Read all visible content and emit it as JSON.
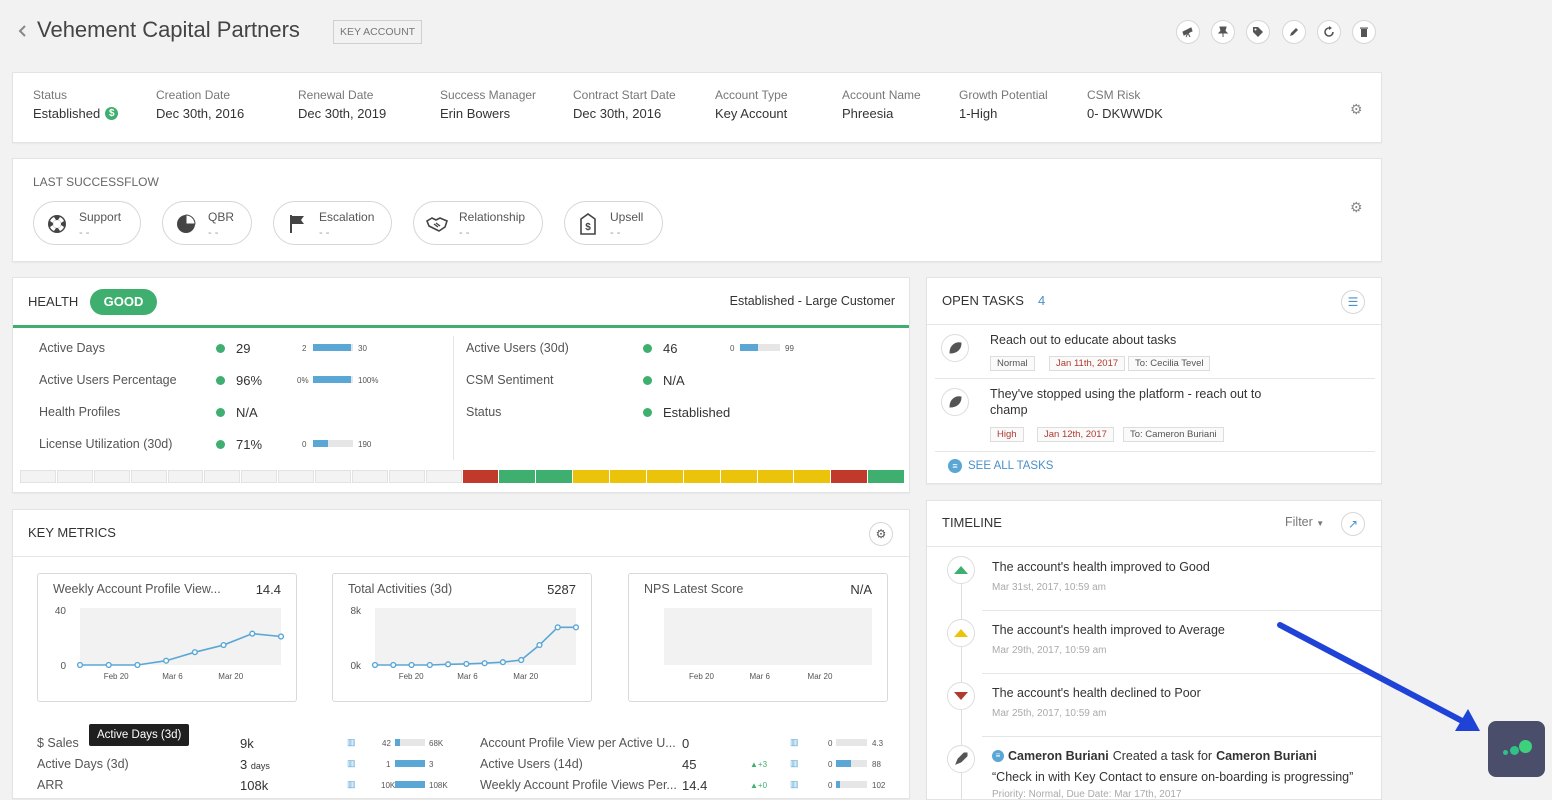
{
  "header": {
    "title": "Vehement Capital Partners",
    "badge": "KEY ACCOUNT",
    "actions": [
      "telescope-icon",
      "pin-icon",
      "tags-icon",
      "pencil-icon",
      "refresh-icon",
      "trash-icon"
    ]
  },
  "details": [
    {
      "label": "Status",
      "value": "Established"
    },
    {
      "label": "Creation Date",
      "value": "Dec 30th, 2016"
    },
    {
      "label": "Renewal Date",
      "value": "Dec 30th, 2019"
    },
    {
      "label": "Success Manager",
      "value": "Erin Bowers"
    },
    {
      "label": "Contract Start Date",
      "value": "Dec 30th, 2016"
    },
    {
      "label": "Account Type",
      "value": "Key Account"
    },
    {
      "label": "Account Name",
      "value": "Phreesia"
    },
    {
      "label": "Growth Potential",
      "value": "1-High"
    },
    {
      "label": "CSM Risk",
      "value": "0- DKWWDK"
    }
  ],
  "successflow": {
    "title": "LAST SUCCESSFLOW",
    "items": [
      {
        "label": "Support",
        "sub": "- -",
        "icon": "lifebuoy-icon"
      },
      {
        "label": "QBR",
        "sub": "- -",
        "icon": "pie-chart-icon"
      },
      {
        "label": "Escalation",
        "sub": "- -",
        "icon": "flag-icon"
      },
      {
        "label": "Relationship",
        "sub": "- -",
        "icon": "handshake-icon"
      },
      {
        "label": "Upsell",
        "sub": "- -",
        "icon": "dollar-tag-icon"
      }
    ]
  },
  "health": {
    "title": "HEALTH",
    "status": "GOOD",
    "segment": "Established - Large Customer",
    "left_rows": [
      {
        "label": "Active Days",
        "value": "29",
        "min": "2",
        "max": "30",
        "fill": 0.96
      },
      {
        "label": "Active Users Percentage",
        "value": "96%",
        "min": "0%",
        "max": "100%",
        "fill": 0.96
      },
      {
        "label": "Health Profiles",
        "value": "N/A"
      },
      {
        "label": "License Utilization (30d)",
        "value": "71%",
        "min": "0",
        "max": "190",
        "fill": 0.37
      }
    ],
    "right_rows": [
      {
        "label": "Active Users (30d)",
        "value": "46",
        "min": "0",
        "max": "99",
        "fill": 0.46
      },
      {
        "label": "CSM Sentiment",
        "value": "N/A"
      },
      {
        "label": "Status",
        "value": "Established"
      }
    ],
    "history": [
      "empty",
      "empty",
      "empty",
      "empty",
      "empty",
      "empty",
      "empty",
      "empty",
      "empty",
      "empty",
      "empty",
      "empty",
      "red",
      "green",
      "green",
      "yellow",
      "yellow",
      "yellow",
      "yellow",
      "yellow",
      "yellow",
      "yellow",
      "red",
      "green"
    ],
    "colors": {
      "green": "#3eaf6f",
      "yellow": "#ecc30b",
      "red": "#c0392b",
      "empty": "#f3f3f3"
    }
  },
  "key_metrics": {
    "title": "KEY METRICS",
    "cards": [
      {
        "title": "Weekly Account Profile View...",
        "value": "14.4",
        "ymax": "40",
        "ymin": "0",
        "xticks": [
          "Feb 20",
          "Mar 6",
          "Mar 20"
        ]
      },
      {
        "title": "Total Activities (3d)",
        "value": "5287",
        "ymax": "8k",
        "ymin": "0k",
        "xticks": [
          "Feb 20",
          "Mar 6",
          "Mar 20"
        ]
      },
      {
        "title": "NPS Latest Score",
        "value": "N/A",
        "ymax": "",
        "ymin": "",
        "xticks": [
          "Feb 20",
          "Mar 6",
          "Mar 20"
        ]
      }
    ],
    "tooltip": "Active Days (3d)",
    "left_rows": [
      {
        "label": "$ Sales",
        "value": "9k",
        "unit": "",
        "min": "42",
        "max": "68K",
        "fill": 0.15
      },
      {
        "label": "Active Days (3d)",
        "value": "3",
        "unit": "days",
        "min": "1",
        "max": "3",
        "fill": 1.0
      },
      {
        "label": "ARR",
        "value": "108k",
        "unit": "",
        "min": "10K",
        "max": "108K",
        "fill": 1.0
      }
    ],
    "right_rows": [
      {
        "label": "Account Profile View per Active U...",
        "value": "0",
        "delta": "",
        "min": "0",
        "max": "4.3",
        "fill": 0.0
      },
      {
        "label": "Active Users (14d)",
        "value": "45",
        "delta": "+3",
        "min": "0",
        "max": "88",
        "fill": 0.5
      },
      {
        "label": "Weekly Account Profile Views Per...",
        "value": "14.4",
        "delta": "+0",
        "min": "0",
        "max": "102",
        "fill": 0.14
      }
    ]
  },
  "chart_data": [
    {
      "type": "line",
      "title": "Weekly Account Profile View...",
      "x": [
        "Feb 13",
        "Feb 20",
        "Feb 27",
        "Mar 6",
        "Mar 13",
        "Mar 20",
        "Mar 27",
        "Apr 3"
      ],
      "y": [
        0,
        0,
        0,
        3,
        9,
        14,
        22,
        20
      ],
      "ylim": [
        0,
        40
      ],
      "xticks": [
        "Feb 20",
        "Mar 6",
        "Mar 20"
      ]
    },
    {
      "type": "line",
      "title": "Total Activities (3d)",
      "x": [
        "Feb 13",
        "Feb 20",
        "Feb 24",
        "Feb 27",
        "Mar 3",
        "Mar 6",
        "Mar 10",
        "Mar 13",
        "Mar 17",
        "Mar 20",
        "Mar 24",
        "Mar 27"
      ],
      "y": [
        0,
        0,
        0,
        0,
        100,
        150,
        250,
        400,
        700,
        2800,
        5287,
        5287
      ],
      "ylim": [
        0,
        8000
      ],
      "xticks": [
        "Feb 20",
        "Mar 6",
        "Mar 20"
      ]
    },
    {
      "type": "line",
      "title": "NPS Latest Score",
      "x": [],
      "y": [],
      "xticks": [
        "Feb 20",
        "Mar 6",
        "Mar 20"
      ]
    }
  ],
  "open_tasks": {
    "title": "OPEN TASKS",
    "count": "4",
    "tasks": [
      {
        "title": "Reach out to educate about tasks",
        "priority": "Normal",
        "date": "Jan 11th, 2017",
        "to": "To: Cecilia Tevel"
      },
      {
        "title": "They've stopped using the platform - reach out to champ",
        "priority": "High",
        "date": "Jan 12th, 2017",
        "to": "To: Cameron Buriani"
      }
    ],
    "see_all": "SEE ALL TASKS"
  },
  "timeline": {
    "title": "TIMELINE",
    "filter": "Filter",
    "events": [
      {
        "text": "The account's health improved to Good",
        "time": "Mar 31st, 2017, 10:59 am",
        "icon": "up-green"
      },
      {
        "text": "The account's health improved to Average",
        "time": "Mar 29th, 2017, 10:59 am",
        "icon": "up-yellow"
      },
      {
        "text": "The account's health declined to Poor",
        "time": "Mar 25th, 2017, 10:59 am",
        "icon": "down-red"
      }
    ],
    "task_event": {
      "actor": "Cameron Buriani",
      "verb": "Created a task for",
      "target": "Cameron Buriani",
      "quote": "“Check in with Key Contact to ensure on-boarding is progressing”",
      "meta": "Priority: Normal, Due Date: Mar 17th, 2017"
    }
  }
}
